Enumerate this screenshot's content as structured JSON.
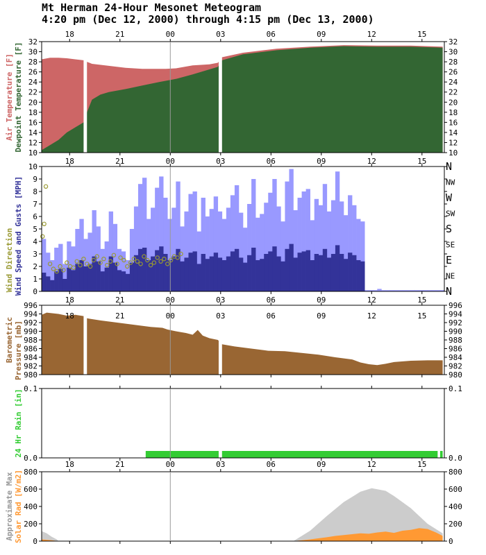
{
  "title": {
    "line1": "Mt Herman 24-Hour Mesonet Meteogram",
    "line2": "4:20 pm (Dec 12, 2000) through 4:15 pm (Dec 13, 2000)"
  },
  "time_ticks": [
    "18",
    "21",
    "00",
    "03",
    "06",
    "09",
    "12",
    "15"
  ],
  "colors": {
    "air_temp": "#cd6666",
    "dewpoint": "#336633",
    "gust": "#9999ff",
    "wind_speed": "#333399",
    "wind_dir": "#999933",
    "pressure": "#996633",
    "rain": "#33cc33",
    "solar": "#ff9933",
    "solar_max": "#cccccc"
  },
  "chart_data": [
    {
      "type": "area",
      "id": "temperature",
      "xunit": "hours since 4:20 pm Dec 12",
      "ylim": [
        10,
        32
      ],
      "yticks": [
        "10",
        "12",
        "14",
        "16",
        "18",
        "20",
        "22",
        "24",
        "26",
        "28",
        "30",
        "32"
      ],
      "ylabel_air": "Air Temperature [F]",
      "ylabel_dew": "Dewpoint Temperature [F]",
      "gaps": [
        [
          2.5,
          2.7
        ],
        [
          10.55,
          10.75
        ]
      ],
      "series": [
        {
          "name": "Air Temperature",
          "x": [
            0.0,
            0.5,
            1.0,
            1.5,
            2.0,
            2.5,
            2.7,
            3.0,
            4.0,
            5.0,
            6.0,
            7.0,
            7.4,
            8.0,
            9.0,
            10.0,
            10.5,
            10.75,
            12,
            14,
            16,
            18,
            20,
            22,
            23.9
          ],
          "y": [
            28.5,
            28.8,
            28.8,
            28.7,
            28.5,
            28.3,
            28.0,
            27.6,
            27.2,
            26.8,
            26.6,
            26.6,
            26.6,
            26.7,
            27.3,
            27.5,
            27.8,
            28.9,
            29.8,
            30.6,
            31.0,
            31.3,
            31.2,
            31.2,
            31.0
          ]
        },
        {
          "name": "Dewpoint Temperature",
          "x": [
            0.0,
            0.5,
            1.0,
            1.5,
            2.0,
            2.5,
            2.7,
            3.0,
            3.5,
            4.0,
            5.0,
            6.0,
            7.0,
            8.0,
            9.0,
            10.0,
            10.5,
            10.75,
            12,
            14,
            16,
            18,
            20,
            22,
            23.9
          ],
          "y": [
            10.5,
            11.5,
            12.5,
            14.0,
            15.0,
            16.0,
            18.0,
            20.5,
            21.5,
            22.0,
            22.6,
            23.3,
            24.0,
            24.6,
            25.5,
            26.5,
            27.0,
            28.3,
            29.5,
            30.3,
            30.8,
            31.1,
            31.0,
            31.0,
            30.8
          ]
        }
      ]
    },
    {
      "type": "bar",
      "id": "wind",
      "xunit": "hours since 4:20 pm Dec 12",
      "ylim": [
        0,
        10
      ],
      "yticks": [
        "0",
        "1",
        "2",
        "3",
        "4",
        "5",
        "6",
        "7",
        "8",
        "9",
        "10"
      ],
      "ylabel_dir": "Wind Direction",
      "ylabel_speed": "Wind Speed and Gusts [MPH]",
      "dir_labels": [
        "N",
        "NE",
        "E",
        "SE",
        "S",
        "SW",
        "W",
        "NW",
        "N"
      ],
      "series": [
        {
          "name": "Wind Gusts",
          "values": [
            4.2,
            3.1,
            2.5,
            3.5,
            3.8,
            2.2,
            4.0,
            3.6,
            5.0,
            5.8,
            4.2,
            4.7,
            6.5,
            5.2,
            3.4,
            4.0,
            6.4,
            5.4,
            3.4,
            3.2,
            2.5,
            5.0,
            6.8,
            8.6,
            9.1,
            5.8,
            6.7,
            8.3,
            9.2,
            7.5,
            5.8,
            6.7,
            8.8,
            5.2,
            6.4,
            7.8,
            8.0,
            4.8,
            7.5,
            6.0,
            6.6,
            7.6,
            6.4,
            5.8,
            6.7,
            7.7,
            8.5,
            6.3,
            5.1,
            7.0,
            9.0,
            5.9,
            6.2,
            7.1,
            7.9,
            9.0,
            6.8,
            5.6,
            8.8,
            9.8,
            6.5,
            7.5,
            8.0,
            8.2,
            5.7,
            7.4,
            6.9,
            8.6,
            6.4,
            7.3,
            9.6,
            7.2,
            6.1,
            7.7,
            6.9,
            5.8,
            5.6,
            0.1,
            0.1,
            0.1,
            0.2,
            0.1,
            0.1,
            0.1,
            0.1,
            0.1,
            0.1,
            0.1,
            0.1,
            0.1,
            0.1,
            0.1,
            0.1,
            0.1,
            0.1,
            0.1
          ]
        },
        {
          "name": "Wind Speed",
          "values": [
            1.5,
            1.2,
            0.9,
            1.6,
            1.8,
            1.0,
            1.9,
            1.7,
            2.2,
            2.5,
            2.0,
            2.2,
            2.8,
            2.4,
            1.6,
            1.9,
            2.8,
            2.3,
            1.7,
            1.6,
            1.4,
            2.3,
            2.9,
            3.4,
            3.5,
            2.5,
            2.8,
            3.3,
            3.6,
            3.0,
            2.5,
            2.8,
            3.4,
            2.4,
            2.7,
            3.1,
            3.2,
            2.2,
            3.0,
            2.6,
            2.8,
            3.1,
            2.7,
            2.5,
            2.8,
            3.2,
            3.4,
            2.7,
            2.3,
            2.9,
            3.5,
            2.5,
            2.6,
            3.0,
            3.2,
            3.6,
            2.8,
            2.4,
            3.4,
            3.8,
            2.7,
            3.1,
            3.2,
            3.3,
            2.5,
            3.0,
            2.9,
            3.4,
            2.7,
            3.0,
            3.7,
            3.0,
            2.6,
            3.1,
            2.9,
            2.5,
            2.4,
            0,
            0,
            0,
            0,
            0,
            0,
            0,
            0,
            0,
            0,
            0,
            0,
            0,
            0,
            0,
            0,
            0,
            0,
            0
          ]
        },
        {
          "name": "Wind Direction",
          "x": [
            0.05,
            0.15,
            0.25,
            0.5,
            0.7,
            0.9,
            1.1,
            1.3,
            1.5,
            1.7,
            1.9,
            2.1,
            2.3,
            2.5,
            2.7,
            2.9,
            3.1,
            3.3,
            3.5,
            3.7,
            3.9,
            4.1,
            4.3,
            4.5,
            4.7,
            4.9,
            5.1,
            5.3,
            5.5,
            5.7,
            5.9,
            6.1,
            6.3,
            6.5,
            6.7,
            6.9,
            7.1,
            7.3,
            7.5,
            7.7,
            7.9,
            8.1,
            8.3
          ],
          "values": [
            4.4,
            5.4,
            8.4,
            2.2,
            1.8,
            1.6,
            2.0,
            1.7,
            2.3,
            2.0,
            1.9,
            2.4,
            2.1,
            2.6,
            2.2,
            2.0,
            2.5,
            2.8,
            2.3,
            2.6,
            2.1,
            2.4,
            2.9,
            2.2,
            2.7,
            2.5,
            2.0,
            2.3,
            2.6,
            2.4,
            2.2,
            2.8,
            2.5,
            2.1,
            2.3,
            2.7,
            2.4,
            2.6,
            2.2,
            2.5,
            2.8,
            2.7,
            3.0
          ]
        }
      ]
    },
    {
      "type": "area",
      "id": "pressure",
      "xunit": "hours since 4:20 pm Dec 12",
      "ylim": [
        980,
        996
      ],
      "yticks": [
        "980",
        "982",
        "984",
        "986",
        "988",
        "990",
        "992",
        "994",
        "996"
      ],
      "ylabel1": "Barometric",
      "ylabel2": "Pressure [mb]",
      "gaps": [
        [
          2.5,
          2.7
        ],
        [
          10.55,
          10.75
        ]
      ],
      "series": [
        {
          "name": "Barometric Pressure",
          "x": [
            0,
            0.3,
            1.0,
            1.5,
            2.0,
            2.5,
            2.7,
            3.5,
            4.5,
            5.5,
            6.5,
            7.2,
            7.5,
            8.0,
            8.6,
            9.0,
            9.3,
            9.6,
            10.0,
            10.5,
            10.75,
            11.5,
            12.5,
            13.5,
            14.5,
            15.5,
            16.5,
            17.5,
            18.5,
            19.0,
            19.5,
            20.0,
            20.5,
            21.0,
            22.0,
            23.0,
            23.9
          ],
          "y": [
            993.8,
            994.3,
            994.0,
            993.6,
            993.8,
            993.5,
            993.0,
            992.5,
            992.0,
            991.5,
            991.0,
            990.8,
            990.4,
            990.0,
            989.6,
            989.2,
            990.3,
            989.0,
            988.4,
            988.0,
            987.0,
            986.5,
            986.0,
            985.5,
            985.4,
            985.0,
            984.6,
            984.0,
            983.5,
            982.8,
            982.4,
            982.2,
            982.5,
            982.9,
            983.2,
            983.3,
            983.3
          ]
        }
      ]
    },
    {
      "type": "bar",
      "id": "rain",
      "xunit": "hours since 4:20 pm Dec 12",
      "ylim": [
        0.0,
        0.1
      ],
      "yticks": [
        "0.0",
        "0.1"
      ],
      "ylabel1": "24 Hr Rain [in]",
      "series": [
        {
          "name": "24 Hr Rain",
          "x_start": 6.2,
          "x_end": 23.9,
          "value": 0.01,
          "gaps": [
            [
              10.55,
              10.75
            ],
            [
              23.6,
              23.75
            ]
          ]
        }
      ]
    },
    {
      "type": "area",
      "id": "solar",
      "xunit": "hours since 4:20 pm Dec 12",
      "ylim": [
        0,
        800
      ],
      "yticks": [
        "0",
        "200",
        "400",
        "600",
        "800"
      ],
      "ylabel_max": "Approximate Max",
      "ylabel_solar": "Solar Rad [W/m2]",
      "series": [
        {
          "name": "Approximate Max",
          "x": [
            0,
            0.3,
            0.6,
            0.9,
            1.0,
            15.0,
            16.0,
            17.0,
            18.0,
            19.0,
            19.67,
            20.5,
            21.0,
            22.0,
            23.0,
            23.9
          ],
          "y": [
            115,
            90,
            50,
            20,
            0,
            0,
            120,
            290,
            450,
            570,
            610,
            580,
            520,
            380,
            200,
            90
          ]
        },
        {
          "name": "Solar Rad",
          "x": [
            0,
            0.3,
            0.6,
            1.0,
            15.0,
            16.0,
            17.0,
            17.5,
            18.0,
            18.5,
            19.0,
            19.5,
            20.0,
            20.5,
            21.0,
            21.5,
            22.0,
            22.5,
            23.0,
            23.5,
            23.9
          ],
          "y": [
            20,
            15,
            10,
            0,
            0,
            20,
            45,
            60,
            70,
            80,
            90,
            85,
            100,
            110,
            95,
            120,
            130,
            150,
            140,
            100,
            60
          ]
        }
      ]
    }
  ]
}
